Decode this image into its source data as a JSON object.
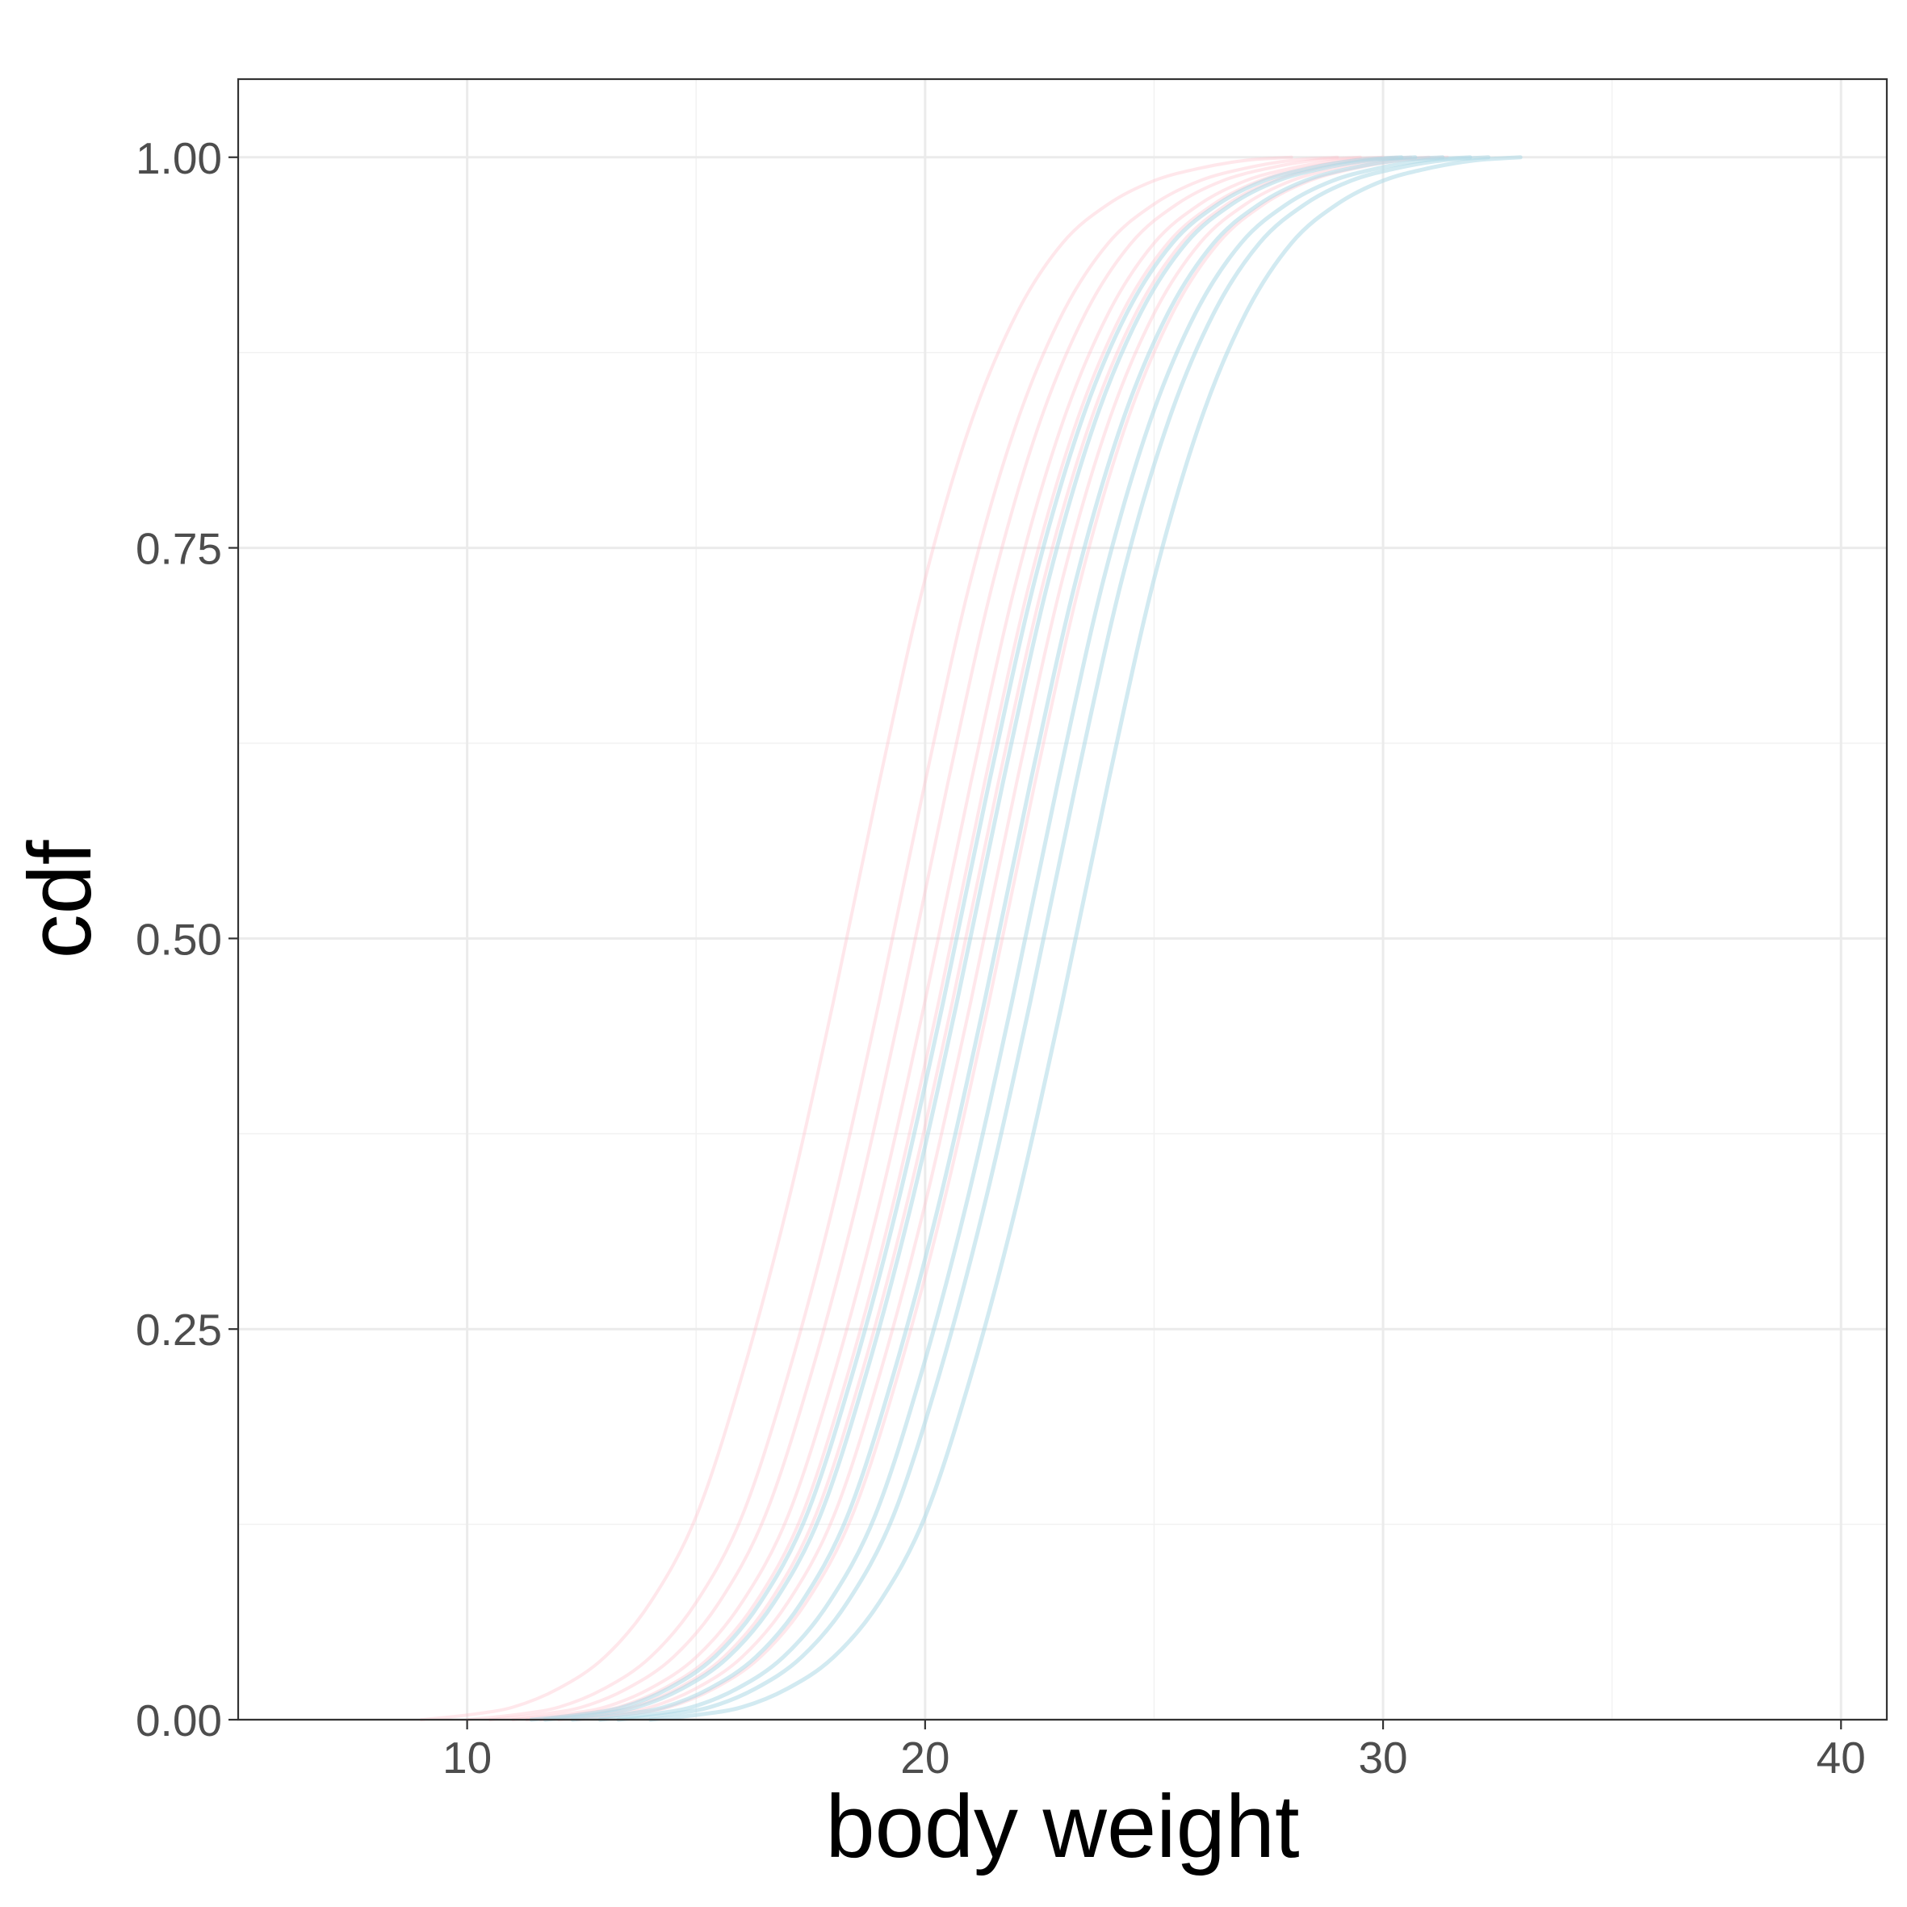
{
  "chart_data": {
    "type": "line",
    "title": "",
    "xlabel": "body weight",
    "ylabel": "cdf",
    "xlim": [
      5,
      41
    ],
    "ylim": [
      0,
      1.05
    ],
    "x_ticks": [
      10,
      20,
      30,
      40
    ],
    "x_tick_labels": [
      "10",
      "20",
      "30",
      "40"
    ],
    "y_ticks": [
      0,
      0.25,
      0.5,
      0.75,
      1
    ],
    "y_tick_labels": [
      "0.00",
      "0.25",
      "0.50",
      "0.75",
      "1.00"
    ],
    "grid": true,
    "legend": "none",
    "colors": {
      "pink": "#ffc0cb",
      "blue": "#add8e6"
    },
    "series": [
      {
        "color": "pink",
        "x_start": 9,
        "x_end": 28,
        "x": [
          9,
          10,
          11,
          12,
          13,
          14,
          15,
          16,
          17,
          18,
          19,
          20,
          21,
          22,
          23,
          24,
          25,
          26,
          27,
          28
        ],
        "y": [
          0.0,
          0.003,
          0.008,
          0.02,
          0.04,
          0.075,
          0.13,
          0.22,
          0.33,
          0.46,
          0.6,
          0.73,
          0.83,
          0.9,
          0.945,
          0.97,
          0.985,
          0.993,
          0.998,
          1.0
        ]
      },
      {
        "color": "pink",
        "x_start": 10,
        "x_end": 29,
        "x": [
          10,
          11,
          12,
          13,
          14,
          15,
          16,
          17,
          18,
          19,
          20,
          21,
          22,
          23,
          24,
          25,
          26,
          27,
          28,
          29
        ],
        "y": [
          0.0,
          0.003,
          0.008,
          0.02,
          0.04,
          0.075,
          0.13,
          0.22,
          0.33,
          0.46,
          0.6,
          0.73,
          0.83,
          0.9,
          0.945,
          0.97,
          0.985,
          0.993,
          0.998,
          1.0
        ]
      },
      {
        "color": "pink",
        "x_start": 10.5,
        "x_end": 29.5,
        "x": [
          10.5,
          11.5,
          12.5,
          13.5,
          14.5,
          15.5,
          16.5,
          17.5,
          18.5,
          19.5,
          20.5,
          21.5,
          22.5,
          23.5,
          24.5,
          25.5,
          26.5,
          27.5,
          28.5,
          29.5
        ],
        "y": [
          0.0,
          0.003,
          0.008,
          0.02,
          0.04,
          0.075,
          0.13,
          0.22,
          0.33,
          0.46,
          0.6,
          0.73,
          0.83,
          0.9,
          0.945,
          0.97,
          0.985,
          0.993,
          0.998,
          1.0
        ]
      },
      {
        "color": "pink",
        "x_start": 11,
        "x_end": 30,
        "x": [
          11,
          12,
          13,
          14,
          15,
          16,
          17,
          18,
          19,
          20,
          21,
          22,
          23,
          24,
          25,
          26,
          27,
          28,
          29,
          30
        ],
        "y": [
          0.0,
          0.003,
          0.008,
          0.02,
          0.04,
          0.075,
          0.13,
          0.22,
          0.33,
          0.46,
          0.6,
          0.73,
          0.83,
          0.9,
          0.945,
          0.97,
          0.985,
          0.993,
          0.998,
          1.0
        ]
      },
      {
        "color": "pink",
        "x_start": 11.3,
        "x_end": 30.3,
        "x": [
          11.3,
          12.3,
          13.3,
          14.3,
          15.3,
          16.3,
          17.3,
          18.3,
          19.3,
          20.3,
          21.3,
          22.3,
          23.3,
          24.3,
          25.3,
          26.3,
          27.3,
          28.3,
          29.3,
          30.3
        ],
        "y": [
          0.0,
          0.003,
          0.008,
          0.02,
          0.04,
          0.075,
          0.13,
          0.22,
          0.33,
          0.46,
          0.6,
          0.73,
          0.83,
          0.9,
          0.945,
          0.97,
          0.985,
          0.993,
          0.998,
          1.0
        ]
      },
      {
        "color": "pink",
        "x_start": 11.6,
        "x_end": 30.6,
        "x": [
          11.6,
          12.6,
          13.6,
          14.6,
          15.6,
          16.6,
          17.6,
          18.6,
          19.6,
          20.6,
          21.6,
          22.6,
          23.6,
          24.6,
          25.6,
          26.6,
          27.6,
          28.6,
          29.6,
          30.6
        ],
        "y": [
          0.0,
          0.003,
          0.008,
          0.02,
          0.04,
          0.075,
          0.13,
          0.22,
          0.33,
          0.46,
          0.6,
          0.73,
          0.83,
          0.9,
          0.945,
          0.97,
          0.985,
          0.993,
          0.998,
          1.0
        ]
      },
      {
        "color": "pink",
        "x_start": 12,
        "x_end": 31,
        "x": [
          12,
          13,
          14,
          15,
          16,
          17,
          18,
          19,
          20,
          21,
          22,
          23,
          24,
          25,
          26,
          27,
          28,
          29,
          30,
          31
        ],
        "y": [
          0.0,
          0.003,
          0.008,
          0.02,
          0.04,
          0.075,
          0.13,
          0.22,
          0.33,
          0.46,
          0.6,
          0.73,
          0.83,
          0.9,
          0.945,
          0.97,
          0.985,
          0.993,
          0.998,
          1.0
        ]
      },
      {
        "color": "pink",
        "x_start": 12.4,
        "x_end": 31.4,
        "x": [
          12.4,
          13.4,
          14.4,
          15.4,
          16.4,
          17.4,
          18.4,
          19.4,
          20.4,
          21.4,
          22.4,
          23.4,
          24.4,
          25.4,
          26.4,
          27.4,
          28.4,
          29.4,
          30.4,
          31.4
        ],
        "y": [
          0.0,
          0.003,
          0.008,
          0.02,
          0.04,
          0.075,
          0.13,
          0.22,
          0.33,
          0.46,
          0.6,
          0.73,
          0.83,
          0.9,
          0.945,
          0.97,
          0.985,
          0.993,
          0.998,
          1.0
        ]
      },
      {
        "color": "blue",
        "x_start": 11.4,
        "x_end": 30.4,
        "x": [
          11.4,
          12.4,
          13.4,
          14.4,
          15.4,
          16.4,
          17.4,
          18.4,
          19.4,
          20.4,
          21.4,
          22.4,
          23.4,
          24.4,
          25.4,
          26.4,
          27.4,
          28.4,
          29.4,
          30.4
        ],
        "y": [
          0.0,
          0.003,
          0.008,
          0.02,
          0.04,
          0.075,
          0.13,
          0.22,
          0.33,
          0.46,
          0.6,
          0.73,
          0.83,
          0.9,
          0.945,
          0.97,
          0.985,
          0.993,
          0.998,
          1.0
        ]
      },
      {
        "color": "blue",
        "x_start": 11.7,
        "x_end": 30.7,
        "x": [
          11.7,
          12.7,
          13.7,
          14.7,
          15.7,
          16.7,
          17.7,
          18.7,
          19.7,
          20.7,
          21.7,
          22.7,
          23.7,
          24.7,
          25.7,
          26.7,
          27.7,
          28.7,
          29.7,
          30.7
        ],
        "y": [
          0.0,
          0.003,
          0.008,
          0.02,
          0.04,
          0.075,
          0.13,
          0.22,
          0.33,
          0.46,
          0.6,
          0.73,
          0.83,
          0.9,
          0.945,
          0.97,
          0.985,
          0.993,
          0.998,
          1.0
        ]
      },
      {
        "color": "blue",
        "x_start": 12.3,
        "x_end": 31.3,
        "x": [
          12.3,
          13.3,
          14.3,
          15.3,
          16.3,
          17.3,
          18.3,
          19.3,
          20.3,
          21.3,
          22.3,
          23.3,
          24.3,
          25.3,
          26.3,
          27.3,
          28.3,
          29.3,
          30.3,
          31.3
        ],
        "y": [
          0.0,
          0.003,
          0.008,
          0.02,
          0.04,
          0.075,
          0.13,
          0.22,
          0.33,
          0.46,
          0.6,
          0.73,
          0.83,
          0.9,
          0.945,
          0.97,
          0.985,
          0.993,
          0.998,
          1.0
        ]
      },
      {
        "color": "blue",
        "x_start": 12.9,
        "x_end": 31.9,
        "x": [
          12.9,
          13.9,
          14.9,
          15.9,
          16.9,
          17.9,
          18.9,
          19.9,
          20.9,
          21.9,
          22.9,
          23.9,
          24.9,
          25.9,
          26.9,
          27.9,
          28.9,
          29.9,
          30.9,
          31.9
        ],
        "y": [
          0.0,
          0.003,
          0.008,
          0.02,
          0.04,
          0.075,
          0.13,
          0.22,
          0.33,
          0.46,
          0.6,
          0.73,
          0.83,
          0.9,
          0.945,
          0.97,
          0.985,
          0.993,
          0.998,
          1.0
        ]
      },
      {
        "color": "blue",
        "x_start": 13.3,
        "x_end": 32.3,
        "x": [
          13.3,
          14.3,
          15.3,
          16.3,
          17.3,
          18.3,
          19.3,
          20.3,
          21.3,
          22.3,
          23.3,
          24.3,
          25.3,
          26.3,
          27.3,
          28.3,
          29.3,
          30.3,
          31.3,
          32.3
        ],
        "y": [
          0.0,
          0.003,
          0.008,
          0.02,
          0.04,
          0.075,
          0.13,
          0.22,
          0.33,
          0.46,
          0.6,
          0.73,
          0.83,
          0.9,
          0.945,
          0.97,
          0.985,
          0.993,
          0.998,
          1.0
        ]
      },
      {
        "color": "blue",
        "x_start": 14,
        "x_end": 33,
        "x": [
          14,
          15,
          16,
          17,
          18,
          19,
          20,
          21,
          22,
          23,
          24,
          25,
          26,
          27,
          28,
          29,
          30,
          31,
          32,
          33
        ],
        "y": [
          0.0,
          0.003,
          0.008,
          0.02,
          0.04,
          0.075,
          0.13,
          0.22,
          0.33,
          0.46,
          0.6,
          0.73,
          0.83,
          0.9,
          0.945,
          0.97,
          0.985,
          0.993,
          0.998,
          1.0
        ]
      }
    ]
  }
}
